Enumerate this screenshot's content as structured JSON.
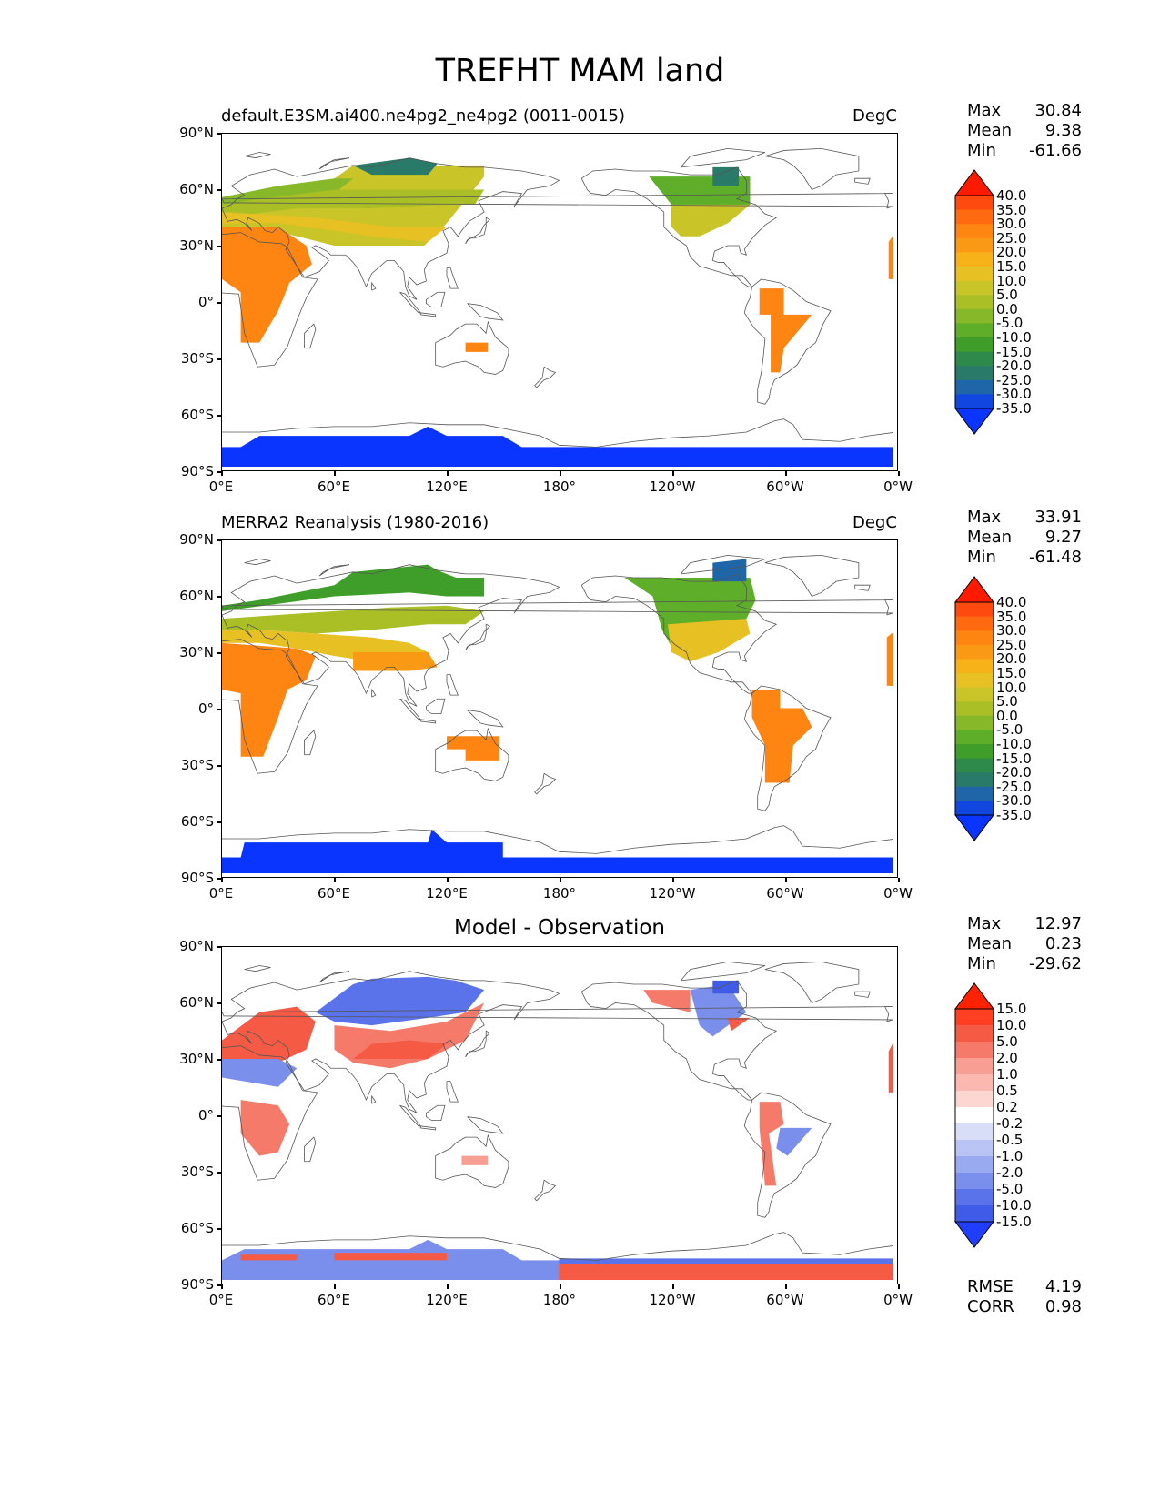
{
  "figure_title": "TREFHT MAM land",
  "panels": [
    {
      "label": "default.E3SM.ai400.ne4pg2_ne4pg2 (0011-0015)",
      "units": "DegC",
      "center_title": "",
      "stats": [
        {
          "name": "Max",
          "value": "30.84"
        },
        {
          "name": "Mean",
          "value": "9.38"
        },
        {
          "name": "Min",
          "value": "-61.66"
        }
      ],
      "extra_stats": [],
      "colorbar_kind": "absolute"
    },
    {
      "label": "MERRA2 Reanalysis (1980-2016)",
      "units": "DegC",
      "center_title": "",
      "stats": [
        {
          "name": "Max",
          "value": "33.91"
        },
        {
          "name": "Mean",
          "value": "9.27"
        },
        {
          "name": "Min",
          "value": "-61.48"
        }
      ],
      "extra_stats": [],
      "colorbar_kind": "absolute"
    },
    {
      "label": "",
      "units": "",
      "center_title": "Model - Observation",
      "stats": [
        {
          "name": "Max",
          "value": "12.97"
        },
        {
          "name": "Mean",
          "value": "0.23"
        },
        {
          "name": "Min",
          "value": "-29.62"
        }
      ],
      "extra_stats": [
        {
          "name": "RMSE",
          "value": "4.19"
        },
        {
          "name": "CORR",
          "value": "0.98"
        }
      ],
      "colorbar_kind": "difference"
    }
  ],
  "axes": {
    "y_ticks": [
      "90°N",
      "60°N",
      "30°N",
      "0°",
      "30°S",
      "60°S",
      "90°S"
    ],
    "x_ticks": [
      "0°E",
      "60°E",
      "120°E",
      "180°",
      "120°W",
      "60°W",
      "0°W"
    ]
  },
  "colorbars": {
    "absolute": {
      "labels": [
        "40.0",
        "35.0",
        "30.0",
        "25.0",
        "20.0",
        "15.0",
        "10.0",
        "5.0",
        "0.0",
        "-5.0",
        "-10.0",
        "-15.0",
        "-20.0",
        "-25.0",
        "-30.0",
        "-35.0"
      ],
      "colors": [
        "#ff1a00",
        "#ff4a0f",
        "#ff6a10",
        "#ff8512",
        "#fa9a14",
        "#f7b21a",
        "#e7c024",
        "#c9c428",
        "#aabf26",
        "#86b82a",
        "#5fae2a",
        "#3f9e2a",
        "#2e8a4a",
        "#2a7a6a",
        "#1f66a8",
        "#1246e0",
        "#0a34ff"
      ]
    },
    "difference": {
      "labels": [
        "15.0",
        "10.0",
        "5.0",
        "2.0",
        "1.0",
        "0.5",
        "0.2",
        "-0.2",
        "-0.5",
        "-1.0",
        "-2.0",
        "-5.0",
        "-10.0",
        "-15.0"
      ],
      "colors": [
        "#ff2200",
        "#ff3f22",
        "#f55a45",
        "#f67a6a",
        "#f89e92",
        "#fab8b0",
        "#fcd7d2",
        "#ffffff",
        "#d9def8",
        "#b9c4f4",
        "#9aaaf0",
        "#7a8fec",
        "#5a73ea",
        "#3f5be8",
        "#1f3eff"
      ]
    }
  },
  "chart_data": {
    "type": "heatmap",
    "title": "TREFHT MAM land",
    "variable": "TREFHT",
    "season": "MAM",
    "region": "land",
    "xlim": [
      0,
      360
    ],
    "ylim": [
      -90,
      90
    ],
    "x_tick_values": [
      0,
      60,
      120,
      180,
      240,
      300,
      360
    ],
    "y_tick_values": [
      90,
      60,
      30,
      0,
      -30,
      -60,
      -90
    ],
    "maps": [
      {
        "name": "default.E3SM.ai400.ne4pg2_ne4pg2 (0011-0015)",
        "units": "DegC",
        "max": 30.84,
        "mean": 9.38,
        "min": -61.66
      },
      {
        "name": "MERRA2 Reanalysis (1980-2016)",
        "units": "DegC",
        "max": 33.91,
        "mean": 9.27,
        "min": -61.48
      },
      {
        "name": "Model - Observation",
        "max": 12.97,
        "mean": 0.23,
        "min": -29.62,
        "rmse": 4.19,
        "corr": 0.98
      }
    ],
    "colorbar_levels_absolute": [
      -35,
      -30,
      -25,
      -20,
      -15,
      -10,
      -5,
      0,
      5,
      10,
      15,
      20,
      25,
      30,
      35,
      40
    ],
    "colorbar_levels_difference": [
      -15,
      -10,
      -5,
      -2,
      -1,
      -0.5,
      -0.2,
      0.2,
      0.5,
      1,
      2,
      5,
      10,
      15
    ]
  }
}
